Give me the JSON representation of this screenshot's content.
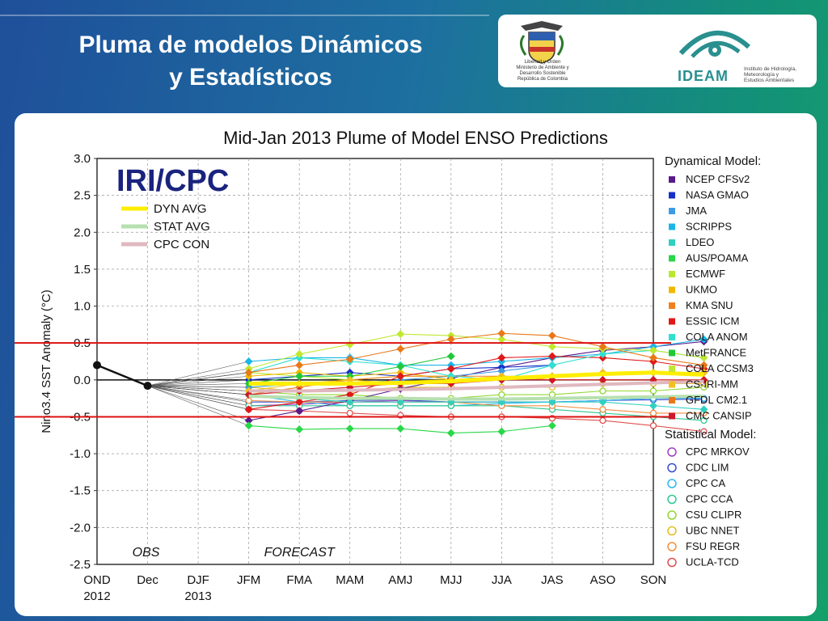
{
  "slide": {
    "title_line1": "Pluma de modelos Dinámicos",
    "title_line2": "y Estadísticos",
    "logo_left_text": "Libertad y Orden\nMinisterio de Ambiente y\nDesarrollo Sostenible\nRepública de Colombia",
    "logo_right_word": "IDEAM",
    "logo_right_sub": "Instituto de Hidrología,\nMeteorología y\nEstudios Ambientales"
  },
  "chart_data": {
    "type": "line",
    "title": "Mid-Jan 2013 Plume of Model ENSO Predictions",
    "ylabel": "Nino3.4 SST Anomaly (°C)",
    "xlabel": "",
    "ylim": [
      -2.5,
      3.0
    ],
    "yticks": [
      3.0,
      2.5,
      2.0,
      1.5,
      1.0,
      0.5,
      0.0,
      -0.5,
      -1.0,
      -1.5,
      -2.0,
      -2.5
    ],
    "categories": [
      "OND",
      "Dec",
      "DJF",
      "JFM",
      "FMA",
      "MAM",
      "AMJ",
      "MJJ",
      "JJA",
      "JAS",
      "ASO",
      "SON"
    ],
    "category_years": {
      "OND": "2012",
      "DJF": "2013"
    },
    "badge": "IRI/CPC",
    "region_labels": {
      "obs": "OBS",
      "forecast": "FORECAST"
    },
    "threshold_lines": [
      0.5,
      -0.5
    ],
    "threshold_color": "#dd1111",
    "grid": true,
    "observed": {
      "x": [
        "OND",
        "Dec"
      ],
      "y": [
        0.2,
        -0.08
      ]
    },
    "averages": [
      {
        "name": "DYN AVG",
        "color": "#ffee00",
        "y": [
          -0.05,
          -0.05,
          -0.05,
          -0.04,
          -0.02,
          0.02,
          0.05,
          0.08,
          0.1,
          0.07
        ]
      },
      {
        "name": "STAT AVG",
        "color": "#b7e0b0",
        "y": [
          -0.22,
          -0.24,
          -0.25,
          -0.25,
          -0.26,
          -0.26,
          -0.25,
          -0.24,
          -0.23,
          -0.22
        ]
      },
      {
        "name": "CPC CON",
        "color": "#e0b8c0",
        "y": [
          -0.15,
          -0.15,
          -0.14,
          -0.13,
          -0.12,
          -0.1,
          -0.08,
          -0.06,
          -0.04,
          -0.02
        ]
      }
    ],
    "dynamical_header": "Dynamical Model:",
    "statistical_header": "Statistical Model:",
    "dynamical_models": [
      {
        "name": "NCEP CFSv2",
        "color": "#5a1a8c",
        "y": [
          -0.55,
          -0.42,
          -0.28,
          -0.12,
          0.02,
          0.17,
          0.3,
          0.4,
          0.45,
          0.52
        ]
      },
      {
        "name": "NASA GMAO",
        "color": "#1530c8",
        "y": [
          0.0,
          0.05,
          0.1,
          0.05,
          0.15,
          0.17,
          0.2,
          null,
          null,
          null
        ]
      },
      {
        "name": "JMA",
        "color": "#3c9be6",
        "y": [
          -0.1,
          -0.05,
          -0.05,
          0.0,
          0.05,
          0.12,
          0.2,
          null,
          null,
          null
        ]
      },
      {
        "name": "SCRIPPS",
        "color": "#1ab6e8",
        "y": [
          0.25,
          0.3,
          0.3,
          0.2,
          0.2,
          0.25,
          0.3,
          0.35,
          0.45,
          0.55
        ]
      },
      {
        "name": "LDEO",
        "color": "#30d0c0",
        "y": [
          -0.2,
          -0.25,
          -0.3,
          -0.3,
          -0.3,
          -0.3,
          -0.3,
          -0.3,
          -0.35,
          -0.4
        ]
      },
      {
        "name": "AUS/POAMA",
        "color": "#28d848",
        "y": [
          -0.62,
          -0.67,
          -0.66,
          -0.66,
          -0.72,
          -0.7,
          -0.62,
          null,
          null,
          null
        ]
      },
      {
        "name": "ECMWF",
        "color": "#b8e830",
        "y": [
          0.1,
          0.05,
          0.0,
          0.05,
          0.05,
          null,
          null,
          null,
          null,
          null
        ]
      },
      {
        "name": "UKMO",
        "color": "#f0b800",
        "y": [
          0.05,
          0.1,
          0.05,
          0.1,
          0.0,
          null,
          null,
          null,
          null,
          null
        ]
      },
      {
        "name": "KMA SNU",
        "color": "#f08020",
        "y": [
          -0.2,
          -0.1,
          0.0,
          0.05,
          0.05,
          0.05,
          0.0,
          0.0,
          0.0,
          0.0
        ]
      },
      {
        "name": "ESSIC ICM",
        "color": "#e01818",
        "y": [
          -0.4,
          -0.3,
          -0.2,
          0.05,
          0.15,
          0.3,
          0.32,
          0.3,
          0.25,
          0.15
        ]
      },
      {
        "name": "COLA ANOM",
        "color": "#30e0d0",
        "y": [
          0.1,
          0.3,
          0.25,
          0.2,
          0.05,
          0.0,
          0.2,
          0.35,
          0.4,
          0.3
        ]
      },
      {
        "name": "MetFRANCE",
        "color": "#20c838",
        "y": [
          -0.05,
          0.05,
          0.05,
          0.18,
          0.32,
          null,
          null,
          null,
          null,
          null
        ]
      },
      {
        "name": "COLA CCSM3",
        "color": "#c0e830",
        "y": [
          0.15,
          0.35,
          0.48,
          0.62,
          0.6,
          0.55,
          0.45,
          0.42,
          0.4,
          0.3
        ]
      },
      {
        "name": "CS-IRI-MM",
        "color": "#f0c020",
        "y": [
          -0.15,
          -0.05,
          0.0,
          -0.05,
          0.0,
          0.05,
          0.05,
          0.1,
          0.1,
          0.1
        ]
      },
      {
        "name": "GFDL CM2.1",
        "color": "#e87818",
        "y": [
          0.1,
          0.2,
          0.28,
          0.42,
          0.55,
          0.63,
          0.6,
          0.45,
          0.3,
          0.2
        ]
      },
      {
        "name": "CMC CANSIP",
        "color": "#d01828",
        "y": [
          -0.2,
          -0.15,
          -0.1,
          -0.05,
          -0.05,
          0.0,
          0.0,
          0.0,
          0.0,
          0.0
        ]
      }
    ],
    "statistical_models": [
      {
        "name": "CPC MRKOV",
        "color": "#a040c0",
        "y": [
          -0.35,
          -0.33,
          -0.3,
          -0.28,
          -0.3,
          -0.3,
          -0.3,
          -0.28,
          -0.25,
          -0.25
        ]
      },
      {
        "name": "CDC LIM",
        "color": "#3850d0",
        "y": [
          -0.3,
          -0.3,
          -0.28,
          -0.27,
          -0.3,
          -0.3,
          -0.3,
          -0.28,
          -0.27,
          -0.26
        ]
      },
      {
        "name": "CPC CA",
        "color": "#30b8f0",
        "y": [
          -0.2,
          -0.3,
          -0.35,
          -0.35,
          -0.35,
          -0.32,
          -0.3,
          -0.28,
          -0.25,
          -0.25
        ]
      },
      {
        "name": "CPC CCA",
        "color": "#30c890",
        "y": [
          -0.35,
          -0.35,
          -0.35,
          -0.35,
          -0.35,
          -0.35,
          -0.4,
          -0.45,
          -0.5,
          -0.55
        ]
      },
      {
        "name": "CSU CLIPR",
        "color": "#90d830",
        "y": [
          -0.15,
          -0.2,
          -0.2,
          -0.25,
          -0.25,
          -0.2,
          -0.2,
          -0.15,
          -0.15,
          -0.1
        ]
      },
      {
        "name": "UBC NNET",
        "color": "#e0c020",
        "y": [
          -0.1,
          -0.15,
          -0.15,
          -0.1,
          -0.1,
          -0.1,
          -0.1,
          -0.05,
          -0.05,
          -0.05
        ]
      },
      {
        "name": "FSU REGR",
        "color": "#f09040",
        "y": [
          -0.28,
          -0.3,
          -0.3,
          -0.3,
          -0.3,
          -0.35,
          -0.35,
          -0.4,
          -0.45,
          -0.45
        ]
      },
      {
        "name": "UCLA-TCD",
        "color": "#e05050",
        "y": [
          -0.4,
          -0.42,
          -0.45,
          -0.48,
          -0.5,
          -0.5,
          -0.52,
          -0.55,
          -0.62,
          -0.7
        ]
      }
    ]
  }
}
